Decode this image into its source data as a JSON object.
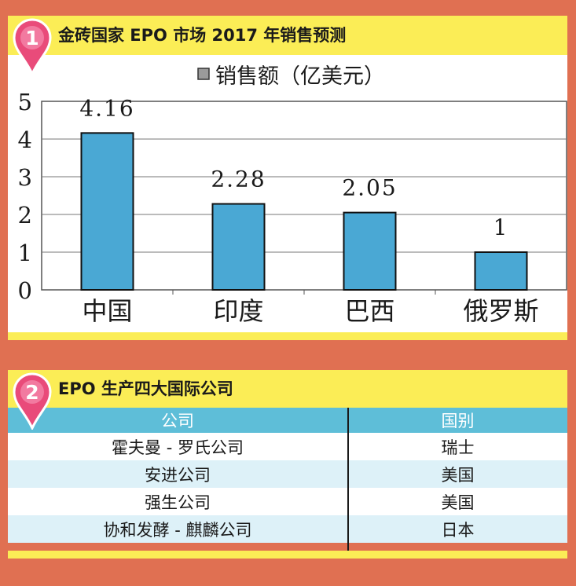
{
  "colors": {
    "background": "#e07052",
    "header_band": "#fbed56",
    "bar_fill": "#4aa8d4",
    "table_header": "#5ebed8",
    "row_alt": "#ddf1f8",
    "pin": "#e94b7a"
  },
  "section1": {
    "badge": "1",
    "title": "金砖国家 EPO 市场 2017 年销售预测",
    "badge_icon": "location-pin-icon"
  },
  "chart_data": {
    "type": "bar",
    "title": "",
    "legend": "销售额（亿美元）",
    "legend_position": "top-center",
    "categories": [
      "中国",
      "印度",
      "巴西",
      "俄罗斯"
    ],
    "values": [
      4.16,
      2.28,
      2.05,
      1
    ],
    "value_labels": [
      "4.16",
      "2.28",
      "2.05",
      "1"
    ],
    "ylim": [
      0,
      5
    ],
    "yticks": [
      "0",
      "1",
      "2",
      "3",
      "4",
      "5"
    ],
    "grid": true,
    "xlabel": "",
    "ylabel": ""
  },
  "section2": {
    "badge": "2",
    "title": "EPO 生产四大国际公司",
    "badge_icon": "location-pin-icon",
    "table": {
      "headers": [
        "公司",
        "国别"
      ],
      "rows": [
        [
          "霍夫曼 - 罗氏公司",
          "瑞士"
        ],
        [
          "安进公司",
          "美国"
        ],
        [
          "强生公司",
          "美国"
        ],
        [
          "协和发酵 - 麒麟公司",
          "日本"
        ]
      ]
    }
  }
}
